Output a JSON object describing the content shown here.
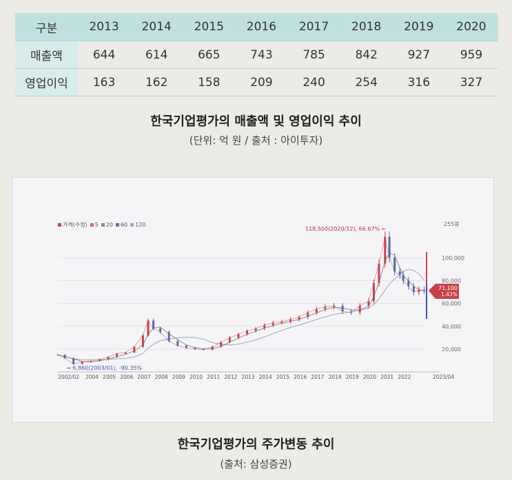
{
  "table": {
    "header": [
      "구분",
      "2013",
      "2014",
      "2015",
      "2016",
      "2017",
      "2018",
      "2019",
      "2020"
    ],
    "rows": [
      {
        "label": "매출액",
        "values": [
          "644",
          "614",
          "665",
          "743",
          "785",
          "842",
          "927",
          "959"
        ]
      },
      {
        "label": "영업이익",
        "values": [
          "163",
          "162",
          "158",
          "209",
          "240",
          "254",
          "316",
          "327"
        ]
      }
    ]
  },
  "caption1": {
    "title": "한국기업평가의 매출액 및 영업이익 추이",
    "sub": "(단위: 억 원 / 출처 : 아이투자)"
  },
  "caption2": {
    "title": "한국기업평가의 주가변동 추이",
    "sub": "(출처: 삼성증권)"
  },
  "chart_data": {
    "type": "line",
    "legend": [
      "가격(수정)",
      "5",
      "20",
      "60",
      "120"
    ],
    "x_ticks": [
      "2002/02",
      "2004",
      "2005",
      "2006",
      "2007",
      "2008",
      "2009",
      "2010",
      "2011",
      "2012",
      "2013",
      "2014",
      "2015",
      "2016",
      "2017",
      "2018",
      "2019",
      "2020",
      "2021",
      "2022",
      "2023/04"
    ],
    "y_ticks": [
      "20,000",
      "40,000",
      "60,000",
      "80,000",
      "100,000"
    ],
    "y_top_label": "255봉",
    "ylim": [
      0,
      125000
    ],
    "annotations": {
      "high": "118,500(2020/12), 66.67%",
      "low": "6,860(2003/01), -90.35%",
      "current_price": "71,100",
      "current_change": "1.43%"
    },
    "x": [
      2002.1,
      2002.5,
      2003.0,
      2003.5,
      2004.0,
      2004.5,
      2005.0,
      2005.5,
      2006.0,
      2006.5,
      2007.0,
      2007.3,
      2007.6,
      2008.0,
      2008.5,
      2009.0,
      2009.5,
      2010.0,
      2010.5,
      2011.0,
      2011.5,
      2012.0,
      2012.5,
      2013.0,
      2013.5,
      2014.0,
      2014.5,
      2015.0,
      2015.5,
      2016.0,
      2016.5,
      2017.0,
      2017.5,
      2018.0,
      2018.5,
      2019.0,
      2019.5,
      2020.0,
      2020.3,
      2020.6,
      2020.95,
      2021.2,
      2021.5,
      2021.8,
      2022.0,
      2022.3,
      2022.6,
      2022.9,
      2023.2
    ],
    "price": [
      15000,
      12000,
      6860,
      9000,
      9500,
      11000,
      13000,
      16000,
      17000,
      22000,
      32000,
      45000,
      38000,
      35000,
      27000,
      23000,
      21000,
      20000,
      19500,
      22000,
      26000,
      30000,
      33000,
      36000,
      38000,
      41000,
      43000,
      44000,
      46000,
      48000,
      52000,
      55000,
      57000,
      58000,
      53000,
      52000,
      58000,
      62000,
      78000,
      95000,
      118500,
      100000,
      88000,
      85000,
      80000,
      75000,
      70000,
      72000,
      71100
    ]
  }
}
